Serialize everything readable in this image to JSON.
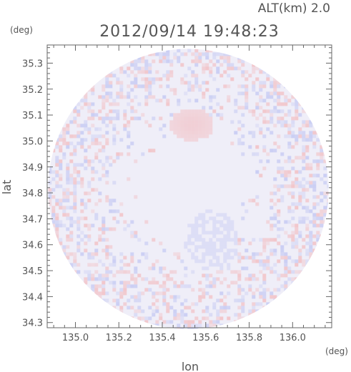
{
  "header": {
    "altitude_label": "ALT(km) 2.0",
    "timestamp": "2012/09/14 19:48:23"
  },
  "chart_data": {
    "type": "heatmap",
    "title": "2012/09/14 19:48:23",
    "subtitle": "ALT(km) 2.0",
    "xlabel": "lon",
    "ylabel": "lat",
    "xunit": "(deg)",
    "yunit": "(deg)",
    "xlim": [
      134.87,
      136.18
    ],
    "ylim": [
      34.28,
      35.37
    ],
    "xticks": [
      "135.0",
      "135.2",
      "135.4",
      "135.6",
      "135.8",
      "136.0"
    ],
    "yticks": [
      "34.3",
      "34.4",
      "34.5",
      "34.6",
      "34.7",
      "34.8",
      "34.9",
      "35.0",
      "35.1",
      "35.2",
      "35.3"
    ],
    "grid": false,
    "radar_center": [
      135.52,
      34.815
    ],
    "radar_radius_deg_lat": 0.54,
    "colors": {
      "positive": "#f5a0a0",
      "negative": "#a8b0f0",
      "neutral": "#efeef8",
      "frame": "#666666"
    }
  }
}
